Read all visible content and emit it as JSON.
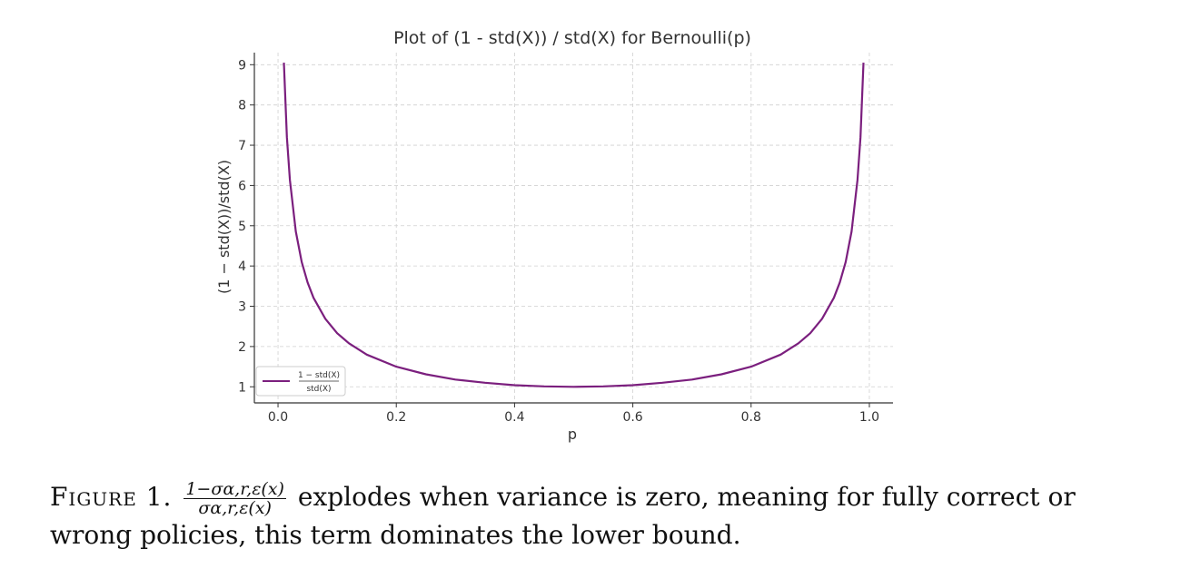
{
  "chart_data": {
    "type": "line",
    "title": "Plot of (1 - std(X)) / std(X) for Bernoulli(p)",
    "xlabel": "p",
    "ylabel": "(1 − std(X))/std(X)",
    "xlim": [
      -0.04,
      1.04
    ],
    "ylim": [
      0.6,
      9.3
    ],
    "x_ticks": [
      "0.0",
      "0.2",
      "0.4",
      "0.6",
      "0.8",
      "1.0"
    ],
    "y_ticks": [
      "1",
      "2",
      "3",
      "4",
      "5",
      "6",
      "7",
      "8",
      "9"
    ],
    "grid": true,
    "legend_placement": "lower-left",
    "series": [
      {
        "name_num": "1 − std(X)",
        "name_den": "std(X)",
        "color": "#7b1f7e",
        "x": [
          0.01,
          0.015,
          0.02,
          0.03,
          0.04,
          0.05,
          0.06,
          0.08,
          0.1,
          0.12,
          0.15,
          0.2,
          0.25,
          0.3,
          0.35,
          0.4,
          0.45,
          0.5,
          0.55,
          0.6,
          0.65,
          0.7,
          0.75,
          0.8,
          0.85,
          0.88,
          0.9,
          0.92,
          0.94,
          0.95,
          0.96,
          0.97,
          0.98,
          0.985,
          0.99
        ],
        "y": [
          9.05,
          7.2,
          6.14,
          4.86,
          4.1,
          3.59,
          3.21,
          2.69,
          2.33,
          2.08,
          1.8,
          1.5,
          1.31,
          1.18,
          1.1,
          1.04,
          1.01,
          1.0,
          1.01,
          1.04,
          1.1,
          1.18,
          1.31,
          1.5,
          1.8,
          2.08,
          2.33,
          2.69,
          3.21,
          3.59,
          4.1,
          4.86,
          6.14,
          7.2,
          9.05
        ]
      }
    ]
  },
  "caption": {
    "label": "Figure 1.",
    "frac_num": "1−σα,r,ε(x)",
    "frac_den": "σα,r,ε(x)",
    "text": " explodes when variance is zero, meaning for fully correct or wrong policies, this term dominates the lower bound."
  }
}
